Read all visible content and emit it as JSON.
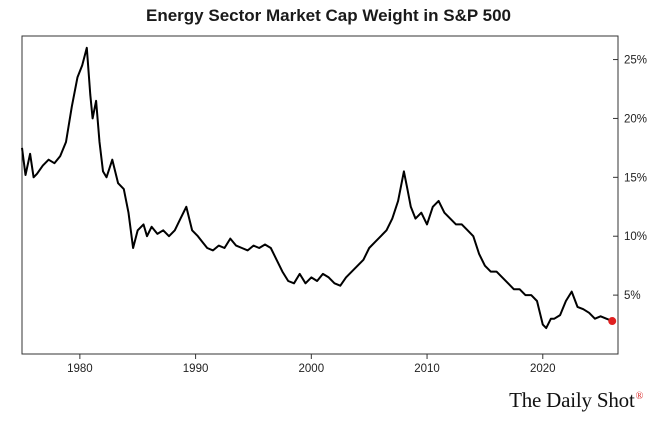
{
  "chart_data": {
    "type": "line",
    "title": "Energy Sector Market Cap Weight in S&P 500",
    "xlabel": "",
    "ylabel": "",
    "xlim": [
      1975,
      2026.5
    ],
    "ylim": [
      0,
      27
    ],
    "x_ticks": [
      1980,
      1990,
      2000,
      2010,
      2020
    ],
    "y_ticks": [
      {
        "value": 5,
        "label": "5%"
      },
      {
        "value": 10,
        "label": "10%"
      },
      {
        "value": 15,
        "label": "15%"
      },
      {
        "value": 20,
        "label": "20%"
      },
      {
        "value": 25,
        "label": "25%"
      }
    ],
    "grid": false,
    "y_axis_side": "right",
    "series": [
      {
        "color": "#000000",
        "x": [
          1975.0,
          1975.3,
          1975.7,
          1976.0,
          1976.3,
          1976.8,
          1977.3,
          1977.8,
          1978.3,
          1978.8,
          1979.3,
          1979.8,
          1980.2,
          1980.6,
          1980.9,
          1981.1,
          1981.4,
          1981.7,
          1982.0,
          1982.3,
          1982.8,
          1983.3,
          1983.8,
          1984.2,
          1984.6,
          1985.0,
          1985.5,
          1985.8,
          1986.2,
          1986.7,
          1987.2,
          1987.7,
          1988.2,
          1988.7,
          1989.2,
          1989.7,
          1990.2,
          1990.6,
          1991.0,
          1991.5,
          1992.0,
          1992.5,
          1993.0,
          1993.5,
          1994.0,
          1994.5,
          1995.0,
          1995.5,
          1996.0,
          1996.5,
          1997.0,
          1997.5,
          1998.0,
          1998.5,
          1999.0,
          1999.5,
          2000.0,
          2000.5,
          2001.0,
          2001.5,
          2002.0,
          2002.5,
          2003.0,
          2003.5,
          2004.0,
          2004.5,
          2005.0,
          2005.5,
          2006.0,
          2006.5,
          2007.0,
          2007.5,
          2008.0,
          2008.3,
          2008.6,
          2009.0,
          2009.5,
          2010.0,
          2010.5,
          2011.0,
          2011.5,
          2012.0,
          2012.5,
          2013.0,
          2013.5,
          2014.0,
          2014.5,
          2015.0,
          2015.5,
          2016.0,
          2016.5,
          2017.0,
          2017.5,
          2018.0,
          2018.5,
          2019.0,
          2019.5,
          2020.0,
          2020.3,
          2020.7,
          2021.0,
          2021.5,
          2022.0,
          2022.5,
          2023.0,
          2023.5,
          2024.0,
          2024.5,
          2025.0,
          2025.5,
          2026.0
        ],
        "values": [
          17.5,
          15.2,
          17.0,
          15.0,
          15.3,
          16.0,
          16.5,
          16.2,
          16.8,
          18.0,
          21.0,
          23.5,
          24.5,
          26.0,
          22.0,
          20.0,
          21.5,
          18.0,
          15.5,
          15.0,
          16.5,
          14.5,
          14.0,
          12.0,
          9.0,
          10.5,
          11.0,
          10.0,
          10.8,
          10.2,
          10.5,
          10.0,
          10.5,
          11.5,
          12.5,
          10.5,
          10.0,
          9.5,
          9.0,
          8.8,
          9.2,
          9.0,
          9.8,
          9.2,
          9.0,
          8.8,
          9.2,
          9.0,
          9.3,
          9.0,
          8.0,
          7.0,
          6.2,
          6.0,
          6.8,
          6.0,
          6.5,
          6.2,
          6.8,
          6.5,
          6.0,
          5.8,
          6.5,
          7.0,
          7.5,
          8.0,
          9.0,
          9.5,
          10.0,
          10.5,
          11.5,
          13.0,
          15.5,
          14.0,
          12.5,
          11.5,
          12.0,
          11.0,
          12.5,
          13.0,
          12.0,
          11.5,
          11.0,
          11.0,
          10.5,
          10.0,
          8.5,
          7.5,
          7.0,
          7.0,
          6.5,
          6.0,
          5.5,
          5.5,
          5.0,
          5.0,
          4.5,
          2.5,
          2.2,
          3.0,
          3.0,
          3.3,
          4.5,
          5.3,
          4.0,
          3.8,
          3.5,
          3.0,
          3.2,
          3.0,
          2.8
        ],
        "end_marker": {
          "value": 2.8,
          "color": "#e02020"
        }
      }
    ]
  },
  "branding": {
    "name": "The Daily Shot",
    "mark": "®"
  }
}
